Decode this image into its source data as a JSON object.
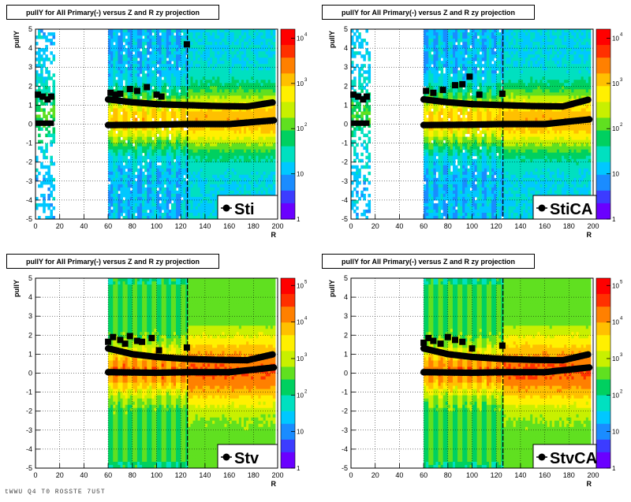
{
  "chart_data": [
    {
      "type": "heatmap",
      "title": "pullY for All Primary(-) versus Z and R zy projection",
      "xlabel": "R",
      "ylabel": "pullY",
      "xlim": [
        0,
        200
      ],
      "ylim": [
        -5,
        5
      ],
      "xticks": [
        "0",
        "20",
        "40",
        "60",
        "80",
        "100",
        "120",
        "140",
        "160",
        "180",
        "200"
      ],
      "yticks": [
        "-5",
        "-4",
        "-3",
        "-2",
        "-1",
        "0",
        "1",
        "2",
        "3",
        "4",
        "5"
      ],
      "zscale": "log",
      "zticks": [
        "1",
        "10",
        "10^2",
        "10^3",
        "10^4"
      ],
      "legend": "Sti",
      "legend_position": "bottom-right",
      "grid": true,
      "profile_points": {
        "markers": [
          {
            "x": 2,
            "y": 1.55
          },
          {
            "x": 6,
            "y": 1.45
          },
          {
            "x": 10,
            "y": 1.3
          },
          {
            "x": 13,
            "y": 1.45
          },
          {
            "x": 62,
            "y": 1.65
          },
          {
            "x": 66,
            "y": 1.55
          },
          {
            "x": 70,
            "y": 1.6
          },
          {
            "x": 78,
            "y": 1.85
          },
          {
            "x": 84,
            "y": 1.75
          },
          {
            "x": 92,
            "y": 1.95
          },
          {
            "x": 100,
            "y": 1.55
          },
          {
            "x": 104,
            "y": 1.45
          },
          {
            "x": 125,
            "y": 4.2
          }
        ],
        "mean_upper": [
          {
            "x": 60,
            "y": 1.3
          },
          {
            "x": 80,
            "y": 1.15
          },
          {
            "x": 100,
            "y": 1.05
          },
          {
            "x": 125,
            "y": 1.0
          },
          {
            "x": 150,
            "y": 0.95
          },
          {
            "x": 175,
            "y": 0.93
          },
          {
            "x": 197,
            "y": 1.15
          }
        ],
        "mean_lower": [
          {
            "x": 60,
            "y": -0.05
          },
          {
            "x": 100,
            "y": -0.03
          },
          {
            "x": 125,
            "y": 0.0
          },
          {
            "x": 160,
            "y": 0.0
          },
          {
            "x": 197,
            "y": 0.2
          }
        ]
      }
    },
    {
      "type": "heatmap",
      "title": "pullY for All Primary(-) versus Z and R zy projection",
      "xlabel": "R",
      "ylabel": "pullY",
      "xlim": [
        0,
        200
      ],
      "ylim": [
        -5,
        5
      ],
      "xticks": [
        "0",
        "20",
        "40",
        "60",
        "80",
        "100",
        "120",
        "140",
        "160",
        "180",
        "200"
      ],
      "yticks": [
        "-5",
        "-4",
        "-3",
        "-2",
        "-1",
        "0",
        "1",
        "2",
        "3",
        "4",
        "5"
      ],
      "zscale": "log",
      "zticks": [
        "1",
        "10",
        "10^2",
        "10^3",
        "10^4"
      ],
      "legend": "StiCA",
      "legend_position": "bottom-right",
      "grid": true,
      "profile_points": {
        "markers": [
          {
            "x": 2,
            "y": 1.55
          },
          {
            "x": 6,
            "y": 1.45
          },
          {
            "x": 10,
            "y": 1.3
          },
          {
            "x": 13,
            "y": 1.45
          },
          {
            "x": 62,
            "y": 1.75
          },
          {
            "x": 68,
            "y": 1.65
          },
          {
            "x": 76,
            "y": 1.8
          },
          {
            "x": 86,
            "y": 2.05
          },
          {
            "x": 92,
            "y": 2.1
          },
          {
            "x": 98,
            "y": 2.5
          },
          {
            "x": 106,
            "y": 1.55
          },
          {
            "x": 125,
            "y": 1.6
          }
        ],
        "mean_upper": [
          {
            "x": 60,
            "y": 1.3
          },
          {
            "x": 80,
            "y": 1.15
          },
          {
            "x": 100,
            "y": 1.05
          },
          {
            "x": 125,
            "y": 1.0
          },
          {
            "x": 150,
            "y": 0.95
          },
          {
            "x": 175,
            "y": 0.93
          },
          {
            "x": 197,
            "y": 1.3
          }
        ],
        "mean_lower": [
          {
            "x": 60,
            "y": -0.05
          },
          {
            "x": 100,
            "y": -0.03
          },
          {
            "x": 125,
            "y": 0.0
          },
          {
            "x": 160,
            "y": 0.0
          },
          {
            "x": 197,
            "y": 0.25
          }
        ]
      }
    },
    {
      "type": "heatmap",
      "title": "pullY for All Primary(-) versus Z and R zy projection",
      "xlabel": "R",
      "ylabel": "pullY",
      "xlim": [
        0,
        200
      ],
      "ylim": [
        -5,
        5
      ],
      "xticks": [
        "0",
        "20",
        "40",
        "60",
        "80",
        "100",
        "120",
        "140",
        "160",
        "180",
        "200"
      ],
      "yticks": [
        "-5",
        "-4",
        "-3",
        "-2",
        "-1",
        "0",
        "1",
        "2",
        "3",
        "4",
        "5"
      ],
      "zscale": "log",
      "zticks": [
        "1",
        "10",
        "10^2",
        "10^3",
        "10^4",
        "10^5"
      ],
      "legend": "Stv",
      "legend_position": "bottom-right",
      "grid": true,
      "profile_points": {
        "markers": [
          {
            "x": 60,
            "y": 1.65
          },
          {
            "x": 64,
            "y": 1.9
          },
          {
            "x": 70,
            "y": 1.75
          },
          {
            "x": 74,
            "y": 1.55
          },
          {
            "x": 78,
            "y": 1.95
          },
          {
            "x": 84,
            "y": 1.7
          },
          {
            "x": 88,
            "y": 1.65
          },
          {
            "x": 96,
            "y": 1.85
          },
          {
            "x": 102,
            "y": 1.2
          },
          {
            "x": 125,
            "y": 1.35
          }
        ],
        "mean_upper": [
          {
            "x": 60,
            "y": 1.3
          },
          {
            "x": 80,
            "y": 1.0
          },
          {
            "x": 100,
            "y": 0.85
          },
          {
            "x": 125,
            "y": 0.75
          },
          {
            "x": 150,
            "y": 0.7
          },
          {
            "x": 175,
            "y": 0.68
          },
          {
            "x": 197,
            "y": 1.0
          }
        ],
        "mean_lower": [
          {
            "x": 60,
            "y": 0.05
          },
          {
            "x": 100,
            "y": 0.02
          },
          {
            "x": 125,
            "y": 0.05
          },
          {
            "x": 160,
            "y": 0.05
          },
          {
            "x": 197,
            "y": 0.3
          }
        ]
      }
    },
    {
      "type": "heatmap",
      "title": "pullY for All Primary(-) versus Z and R zy projection",
      "xlabel": "R",
      "ylabel": "pullY",
      "xlim": [
        0,
        200
      ],
      "ylim": [
        -5,
        5
      ],
      "xticks": [
        "0",
        "20",
        "40",
        "60",
        "80",
        "100",
        "120",
        "140",
        "160",
        "180",
        "200"
      ],
      "yticks": [
        "-5",
        "-4",
        "-3",
        "-2",
        "-1",
        "0",
        "1",
        "2",
        "3",
        "4",
        "5"
      ],
      "zscale": "log",
      "zticks": [
        "1",
        "10",
        "10^2",
        "10^3",
        "10^4",
        "10^5"
      ],
      "legend": "StvCA",
      "legend_position": "bottom-right",
      "grid": true,
      "profile_points": {
        "markers": [
          {
            "x": 60,
            "y": 1.6
          },
          {
            "x": 64,
            "y": 1.85
          },
          {
            "x": 68,
            "y": 1.7
          },
          {
            "x": 74,
            "y": 1.55
          },
          {
            "x": 80,
            "y": 1.9
          },
          {
            "x": 86,
            "y": 1.75
          },
          {
            "x": 92,
            "y": 1.65
          },
          {
            "x": 100,
            "y": 1.3
          },
          {
            "x": 125,
            "y": 1.45
          }
        ],
        "mean_upper": [
          {
            "x": 60,
            "y": 1.3
          },
          {
            "x": 80,
            "y": 1.0
          },
          {
            "x": 100,
            "y": 0.85
          },
          {
            "x": 125,
            "y": 0.75
          },
          {
            "x": 150,
            "y": 0.7
          },
          {
            "x": 175,
            "y": 0.68
          },
          {
            "x": 197,
            "y": 1.0
          }
        ],
        "mean_lower": [
          {
            "x": 60,
            "y": 0.05
          },
          {
            "x": 100,
            "y": 0.02
          },
          {
            "x": 125,
            "y": 0.05
          },
          {
            "x": 160,
            "y": 0.05
          },
          {
            "x": 197,
            "y": 0.3
          }
        ]
      }
    }
  ],
  "footer_text": "tWWU Q4 T0 ROSSTE 7U5T"
}
